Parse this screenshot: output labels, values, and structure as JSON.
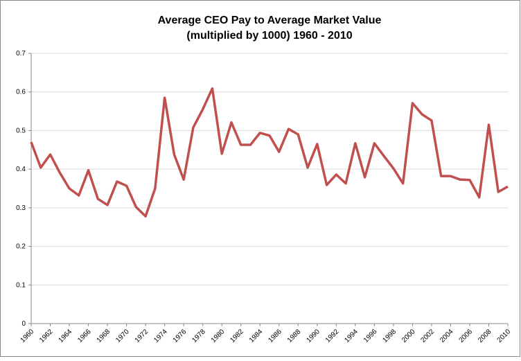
{
  "chart_data": {
    "type": "line",
    "title": [
      "Average CEO Pay to Average Market Value",
      "(multiplied by 1000) 1960 - 2010"
    ],
    "x": [
      1960,
      1961,
      1962,
      1963,
      1964,
      1965,
      1966,
      1967,
      1968,
      1969,
      1970,
      1971,
      1972,
      1973,
      1974,
      1975,
      1976,
      1977,
      1978,
      1979,
      1980,
      1981,
      1982,
      1983,
      1984,
      1985,
      1986,
      1987,
      1988,
      1989,
      1990,
      1991,
      1992,
      1993,
      1994,
      1995,
      1996,
      1997,
      1998,
      1999,
      2000,
      2001,
      2002,
      2003,
      2004,
      2005,
      2006,
      2007,
      2008,
      2009,
      2010
    ],
    "series": [
      {
        "color": "#c0504d",
        "values": [
          0.47,
          0.404,
          0.438,
          0.391,
          0.35,
          0.332,
          0.397,
          0.323,
          0.307,
          0.368,
          0.357,
          0.302,
          0.278,
          0.35,
          0.585,
          0.438,
          0.373,
          0.508,
          0.555,
          0.609,
          0.44,
          0.521,
          0.463,
          0.463,
          0.494,
          0.487,
          0.445,
          0.504,
          0.49,
          0.404,
          0.465,
          0.359,
          0.386,
          0.363,
          0.467,
          0.379,
          0.467,
          0.434,
          0.402,
          0.363,
          0.571,
          0.542,
          0.526,
          0.382,
          0.382,
          0.373,
          0.372,
          0.327,
          0.515,
          0.341,
          0.355
        ]
      }
    ],
    "xlim": [
      1960,
      2010
    ],
    "xticks": [
      1960,
      1962,
      1964,
      1966,
      1968,
      1970,
      1972,
      1974,
      1976,
      1978,
      1980,
      1982,
      1984,
      1986,
      1988,
      1990,
      1992,
      1994,
      1996,
      1998,
      2000,
      2002,
      2004,
      2006,
      2008,
      2010
    ],
    "ylim": [
      0,
      0.7
    ],
    "yticks": [
      0,
      0.1,
      0.2,
      0.3,
      0.4,
      0.5,
      0.6,
      0.7
    ],
    "grid": true
  }
}
